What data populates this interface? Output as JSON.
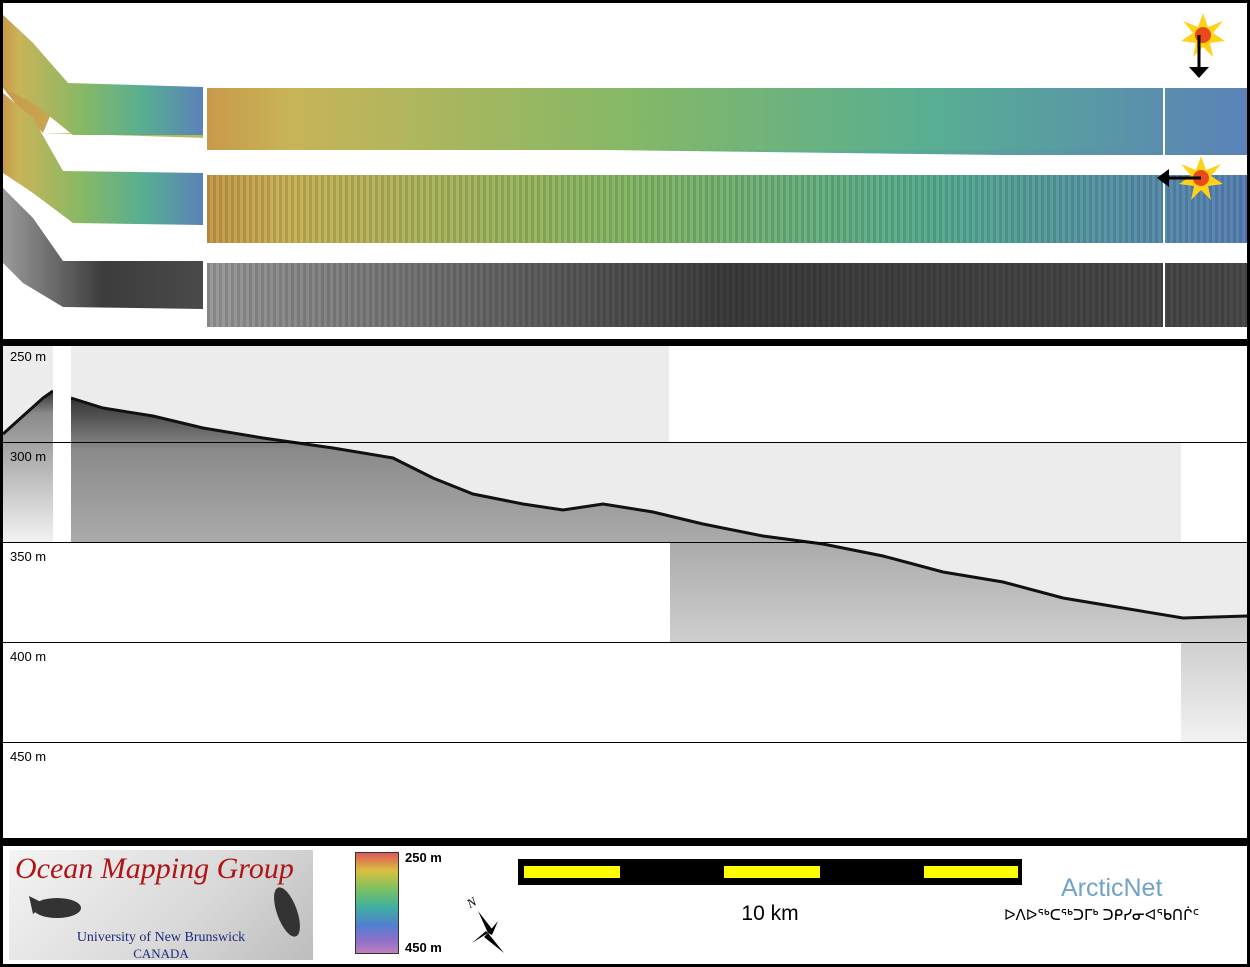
{
  "depth_scale": {
    "labels": [
      "250 m",
      "300 m",
      "350 m",
      "400 m",
      "450 m"
    ]
  },
  "swath_markers": [
    {
      "icon": "sun-icon",
      "arrow": "arrow-down-icon"
    },
    {
      "icon": "sun-icon",
      "arrow": "arrow-left-icon"
    }
  ],
  "legend": {
    "logo": {
      "title": "Ocean Mapping Group",
      "university": "University of New Brunswick",
      "country": "CANADA"
    },
    "colorbar": {
      "top_label": "250 m",
      "bottom_label": "450 m",
      "colors": [
        "#e05858",
        "#d8c040",
        "#7cc060",
        "#40b0a0",
        "#5080d0",
        "#9070c8",
        "#c080c0"
      ]
    },
    "north_arrow_label": "N",
    "scale_bar_label": "10 km",
    "arcticnet": {
      "name": "ArcticNet",
      "syllabics": "ᐅᐱᐅᖅᑕᖅᑐᒥᒃ ᑐᑭᓯᓂᐊᖃᑎᒌᑦ"
    }
  },
  "colors": {
    "swath_west": "#c8a850",
    "swath_mid": "#7cb060",
    "swath_east": "#5a86b8",
    "backscatter": "#555555",
    "scale_fill": "#ffff00"
  }
}
